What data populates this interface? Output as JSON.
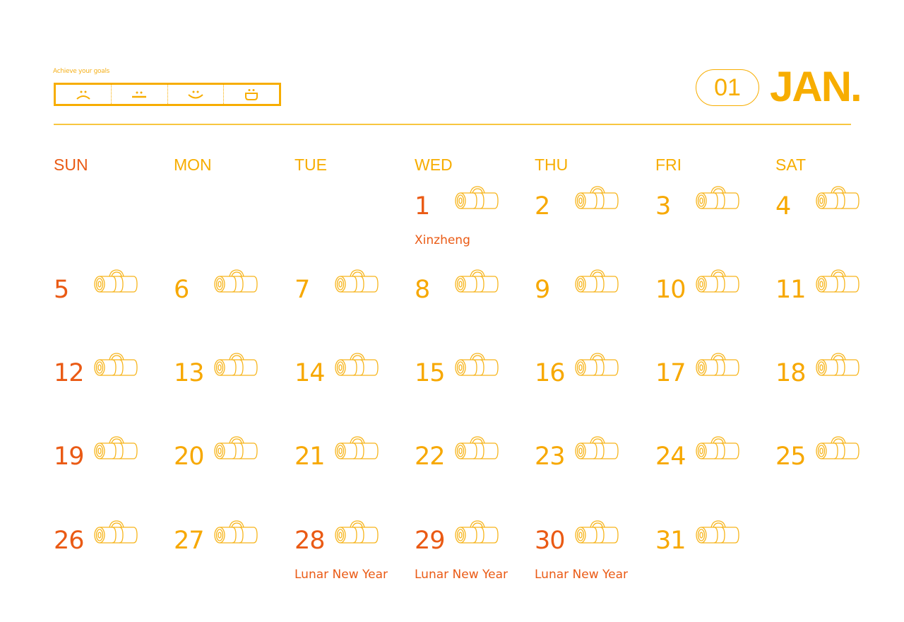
{
  "header": {
    "tagline": "Achieve your goals",
    "mood_tracker": [
      "sad-face-icon",
      "neutral-face-icon",
      "smile-face-icon",
      "grin-face-icon"
    ],
    "month_number": "01",
    "month_name": "JAN."
  },
  "colors": {
    "accent": "#f7ad00",
    "holiday": "#ea5a14"
  },
  "weekdays": [
    "SUN",
    "MON",
    "TUE",
    "WED",
    "THU",
    "FRI",
    "SAT"
  ],
  "first_weekday_index": 3,
  "days": [
    {
      "n": "1",
      "red": true,
      "note": "Xinzheng"
    },
    {
      "n": "2"
    },
    {
      "n": "3"
    },
    {
      "n": "4"
    },
    {
      "n": "5",
      "red": true
    },
    {
      "n": "6"
    },
    {
      "n": "7"
    },
    {
      "n": "8"
    },
    {
      "n": "9"
    },
    {
      "n": "10"
    },
    {
      "n": "11"
    },
    {
      "n": "12",
      "red": true
    },
    {
      "n": "13"
    },
    {
      "n": "14"
    },
    {
      "n": "15"
    },
    {
      "n": "16"
    },
    {
      "n": "17"
    },
    {
      "n": "18"
    },
    {
      "n": "19",
      "red": true
    },
    {
      "n": "20"
    },
    {
      "n": "21"
    },
    {
      "n": "22"
    },
    {
      "n": "23"
    },
    {
      "n": "24"
    },
    {
      "n": "25"
    },
    {
      "n": "26",
      "red": true
    },
    {
      "n": "27"
    },
    {
      "n": "28",
      "red": true,
      "note": "Lunar New Year"
    },
    {
      "n": "29",
      "red": true,
      "note": "Lunar New Year"
    },
    {
      "n": "30",
      "red": true,
      "note": "Lunar New Year"
    },
    {
      "n": "31"
    }
  ],
  "day_icon": "yoga-mat-icon"
}
